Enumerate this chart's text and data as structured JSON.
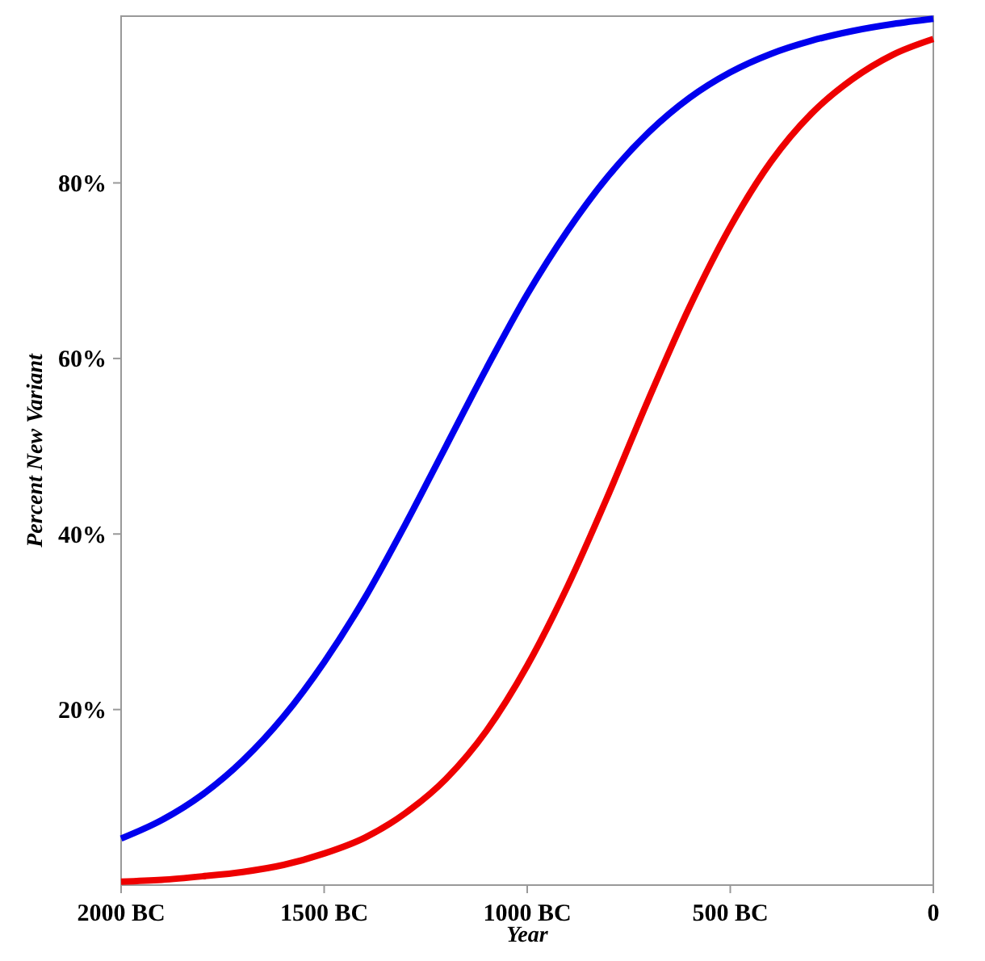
{
  "chart_data": {
    "type": "line",
    "xlabel": "Year",
    "ylabel": "Percent New Variant",
    "x": [
      -2000,
      -1900,
      -1800,
      -1700,
      -1600,
      -1500,
      -1400,
      -1300,
      -1200,
      -1100,
      -1000,
      -900,
      -800,
      -700,
      -600,
      -500,
      -400,
      -300,
      -200,
      -100,
      0
    ],
    "series": [
      {
        "color": "#0000ee",
        "values": [
          5.3,
          7.4,
          10.3,
          14.2,
          19.2,
          25.4,
          32.7,
          41.1,
          50,
          58.9,
          67.3,
          74.6,
          80.8,
          85.8,
          89.7,
          92.6,
          94.7,
          96.2,
          97.3,
          98.1,
          98.7
        ]
      },
      {
        "color": "#ee0000",
        "values": [
          0.4,
          0.6,
          1.0,
          1.5,
          2.3,
          3.6,
          5.4,
          8.2,
          12.1,
          17.6,
          25.0,
          34.1,
          44.5,
          55.5,
          65.9,
          75.0,
          82.4,
          87.9,
          91.8,
          94.6,
          96.4
        ]
      }
    ],
    "xlim": [
      -2000,
      0
    ],
    "xticks": [
      {
        "value": -2000,
        "label": "2000 BC"
      },
      {
        "value": -1500,
        "label": "1500 BC"
      },
      {
        "value": -1000,
        "label": "1000 BC"
      },
      {
        "value": -500,
        "label": "500 BC"
      },
      {
        "value": 0,
        "label": "0"
      }
    ],
    "ylim": [
      0,
      99
    ],
    "yticks": [
      {
        "value": 20,
        "label": "20%"
      },
      {
        "value": 40,
        "label": "40%"
      },
      {
        "value": 60,
        "label": "60%"
      },
      {
        "value": 80,
        "label": "80%"
      }
    ],
    "grid": false,
    "marker": "none",
    "line_style": "solid"
  }
}
